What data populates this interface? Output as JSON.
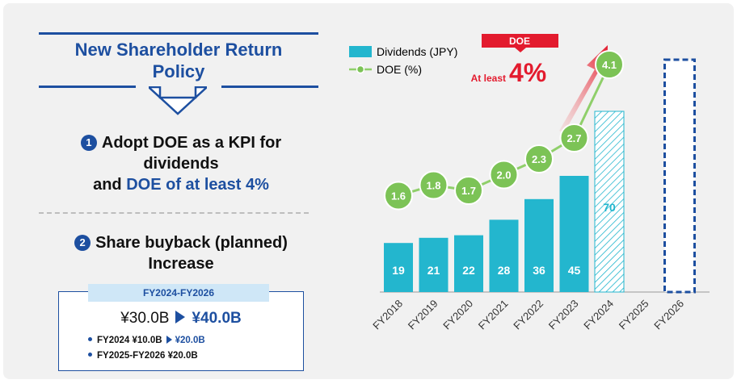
{
  "policy": {
    "title_line1": "New Shareholder Return",
    "title_line2": "Policy",
    "item1": {
      "number": "1",
      "line1": "Adopt DOE as a KPI for",
      "line2": "dividends",
      "line3_prefix": "and ",
      "line3_highlight": "DOE of at least 4%"
    },
    "item2": {
      "number": "2",
      "line1": "Share buyback (planned)",
      "line2": "Increase"
    },
    "buyback": {
      "period": "FY2024-FY2026",
      "before": "¥30.0B",
      "after": "¥40.0B",
      "bullet1_prefix": "FY2024 ¥10.0B",
      "bullet1_after": "¥20.0B",
      "bullet2": "FY2025-FY2026 ¥20.0B"
    }
  },
  "colors": {
    "bar": "#23b6ce",
    "line": "#8fcf6a",
    "marker": "#7cc356",
    "accent_blue": "#1d4fa0",
    "accent_red": "#e31b2e"
  },
  "chart_data": {
    "type": "bar",
    "categories": [
      "FY2018",
      "FY2019",
      "FY2020",
      "FY2021",
      "FY2022",
      "FY2023",
      "FY2024",
      "FY2025",
      "FY2026"
    ],
    "series": [
      {
        "name": "Dividends (JPY)",
        "type": "bar",
        "values": [
          19,
          21,
          22,
          28,
          36,
          45,
          70,
          null,
          null
        ],
        "forecast_index": [
          6
        ]
      },
      {
        "name": "DOE (%)",
        "type": "line",
        "values": [
          1.6,
          1.8,
          1.7,
          2.0,
          2.3,
          2.7,
          4.1,
          null,
          null
        ]
      }
    ],
    "planned_placeholder": {
      "category": "FY2026",
      "style": "dashed outline"
    },
    "callout": {
      "tag": "DOE",
      "prefix": "At least",
      "value": "4%"
    },
    "legend": {
      "position": "top-left",
      "bar_label": "Dividends (JPY)",
      "line_label": "DOE (%)"
    },
    "grid": false
  }
}
